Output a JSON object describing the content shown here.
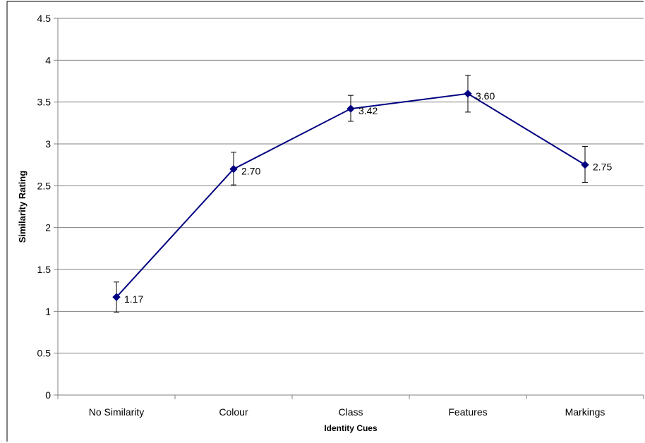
{
  "chart_data": {
    "type": "line",
    "title": "",
    "xlabel": "Identity Cues",
    "ylabel": "Similarity Rating",
    "categories": [
      "No Similarity",
      "Colour",
      "Class",
      "Features",
      "Markings"
    ],
    "series": [
      {
        "values": [
          1.17,
          2.7,
          3.42,
          3.6,
          2.75
        ],
        "data_labels": [
          "1.17",
          "2.70",
          "3.42",
          "3.60",
          "2.75"
        ],
        "error_low": [
          0.99,
          2.51,
          3.27,
          3.38,
          2.54
        ],
        "error_high": [
          1.35,
          2.9,
          3.58,
          3.82,
          2.97
        ]
      }
    ],
    "ylim": [
      0,
      4.5
    ],
    "yticks": [
      "0",
      "0.5",
      "1",
      "1.5",
      "2",
      "2.5",
      "3",
      "3.5",
      "4",
      "4.5"
    ],
    "ytick_values": [
      0,
      0.5,
      1,
      1.5,
      2,
      2.5,
      3,
      3.5,
      4,
      4.5
    ],
    "grid": true,
    "legend": "none",
    "line_color": "#000080"
  }
}
